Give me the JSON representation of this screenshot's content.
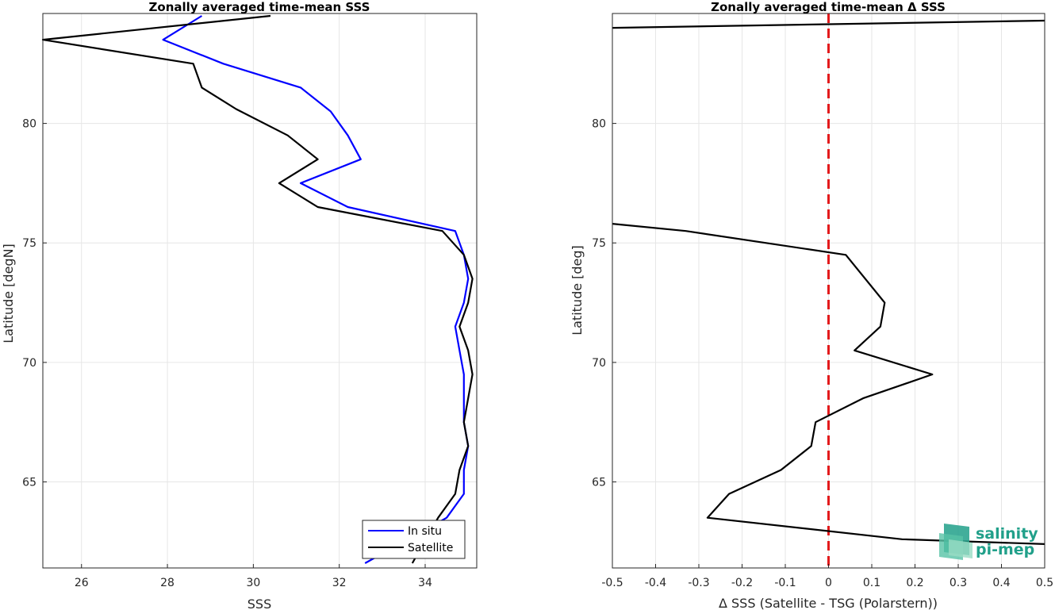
{
  "chart_data": [
    {
      "type": "line",
      "title": "Zonally averaged time-mean SSS",
      "xlabel": "SSS",
      "ylabel": "Latitude [degN]",
      "xlim": [
        25.1,
        35.2
      ],
      "ylim": [
        61.4,
        84.6
      ],
      "xticks": [
        "26",
        "28",
        "30",
        "32",
        "34"
      ],
      "xtick_values": [
        26,
        28,
        30,
        32,
        34
      ],
      "yticks": [
        "65",
        "70",
        "75",
        "80"
      ],
      "ytick_values": [
        65,
        70,
        75,
        80
      ],
      "grid": true,
      "legend_position": "bottom-right",
      "series": [
        {
          "name": "In situ",
          "color": "#0000ff",
          "points": [
            [
              28.8,
              84.5
            ],
            [
              27.9,
              83.5
            ],
            [
              29.3,
              82.5
            ],
            [
              31.1,
              81.5
            ],
            [
              31.8,
              80.5
            ],
            [
              32.2,
              79.5
            ],
            [
              32.5,
              78.5
            ],
            [
              31.1,
              77.5
            ],
            [
              32.2,
              76.5
            ],
            [
              34.7,
              75.5
            ],
            [
              34.9,
              74.5
            ],
            [
              35.0,
              73.5
            ],
            [
              34.9,
              72.5
            ],
            [
              34.7,
              71.5
            ],
            [
              34.8,
              70.5
            ],
            [
              34.9,
              69.5
            ],
            [
              34.9,
              68.5
            ],
            [
              34.9,
              67.5
            ],
            [
              35.0,
              66.5
            ],
            [
              34.9,
              65.5
            ],
            [
              34.9,
              64.5
            ],
            [
              34.5,
              63.5
            ],
            [
              32.6,
              61.6
            ]
          ]
        },
        {
          "name": "Satellite",
          "color": "#000000",
          "points": [
            [
              30.4,
              84.5
            ],
            [
              25.1,
              83.5
            ],
            [
              28.6,
              82.5
            ],
            [
              28.8,
              81.5
            ],
            [
              29.6,
              80.6
            ],
            [
              30.8,
              79.5
            ],
            [
              31.5,
              78.5
            ],
            [
              30.6,
              77.5
            ],
            [
              31.5,
              76.5
            ],
            [
              34.4,
              75.5
            ],
            [
              34.9,
              74.5
            ],
            [
              35.1,
              73.5
            ],
            [
              35.0,
              72.5
            ],
            [
              34.8,
              71.5
            ],
            [
              35.0,
              70.5
            ],
            [
              35.1,
              69.5
            ],
            [
              35.0,
              68.5
            ],
            [
              34.9,
              67.5
            ],
            [
              35.0,
              66.5
            ],
            [
              34.8,
              65.5
            ],
            [
              34.7,
              64.5
            ],
            [
              34.3,
              63.5
            ],
            [
              33.7,
              61.6
            ]
          ]
        }
      ]
    },
    {
      "type": "line",
      "title": "Zonally averaged time-mean Δ SSS",
      "xlabel": "Δ SSS (Satellite - TSG (Polarstern))",
      "ylabel": "Latitude [deg]",
      "xlim": [
        -0.5,
        0.5
      ],
      "ylim": [
        61.4,
        84.6
      ],
      "xticks": [
        "-0.5",
        "-0.4",
        "-0.3",
        "-0.2",
        "-0.1",
        "0",
        "0.1",
        "0.2",
        "0.3",
        "0.4",
        "0.5"
      ],
      "xtick_values": [
        -0.5,
        -0.4,
        -0.3,
        -0.2,
        -0.1,
        0,
        0.1,
        0.2,
        0.3,
        0.4,
        0.5
      ],
      "yticks": [
        "65",
        "70",
        "75",
        "80"
      ],
      "ytick_values": [
        65,
        70,
        75,
        80
      ],
      "grid": true,
      "reference_line": {
        "x": 0,
        "color": "#e31a1c",
        "style": "dashed"
      },
      "series": [
        {
          "color": "#000000",
          "points": [
            [
              0.5,
              84.3
            ],
            [
              -0.5,
              84.0
            ]
          ]
        },
        {
          "color": "#000000",
          "points": [
            [
              -0.5,
              75.8
            ],
            [
              -0.33,
              75.5
            ],
            [
              0.04,
              74.5
            ],
            [
              0.13,
              72.5
            ],
            [
              0.12,
              71.5
            ],
            [
              0.06,
              70.5
            ],
            [
              0.24,
              69.5
            ],
            [
              0.08,
              68.5
            ],
            [
              -0.03,
              67.5
            ],
            [
              -0.04,
              66.5
            ],
            [
              -0.11,
              65.5
            ],
            [
              -0.23,
              64.5
            ],
            [
              -0.28,
              63.5
            ],
            [
              0.17,
              62.6
            ],
            [
              0.5,
              62.4
            ]
          ]
        }
      ]
    }
  ],
  "logo": {
    "line1": "salinity",
    "line2": "pi-mep",
    "color": "#21a08a"
  }
}
